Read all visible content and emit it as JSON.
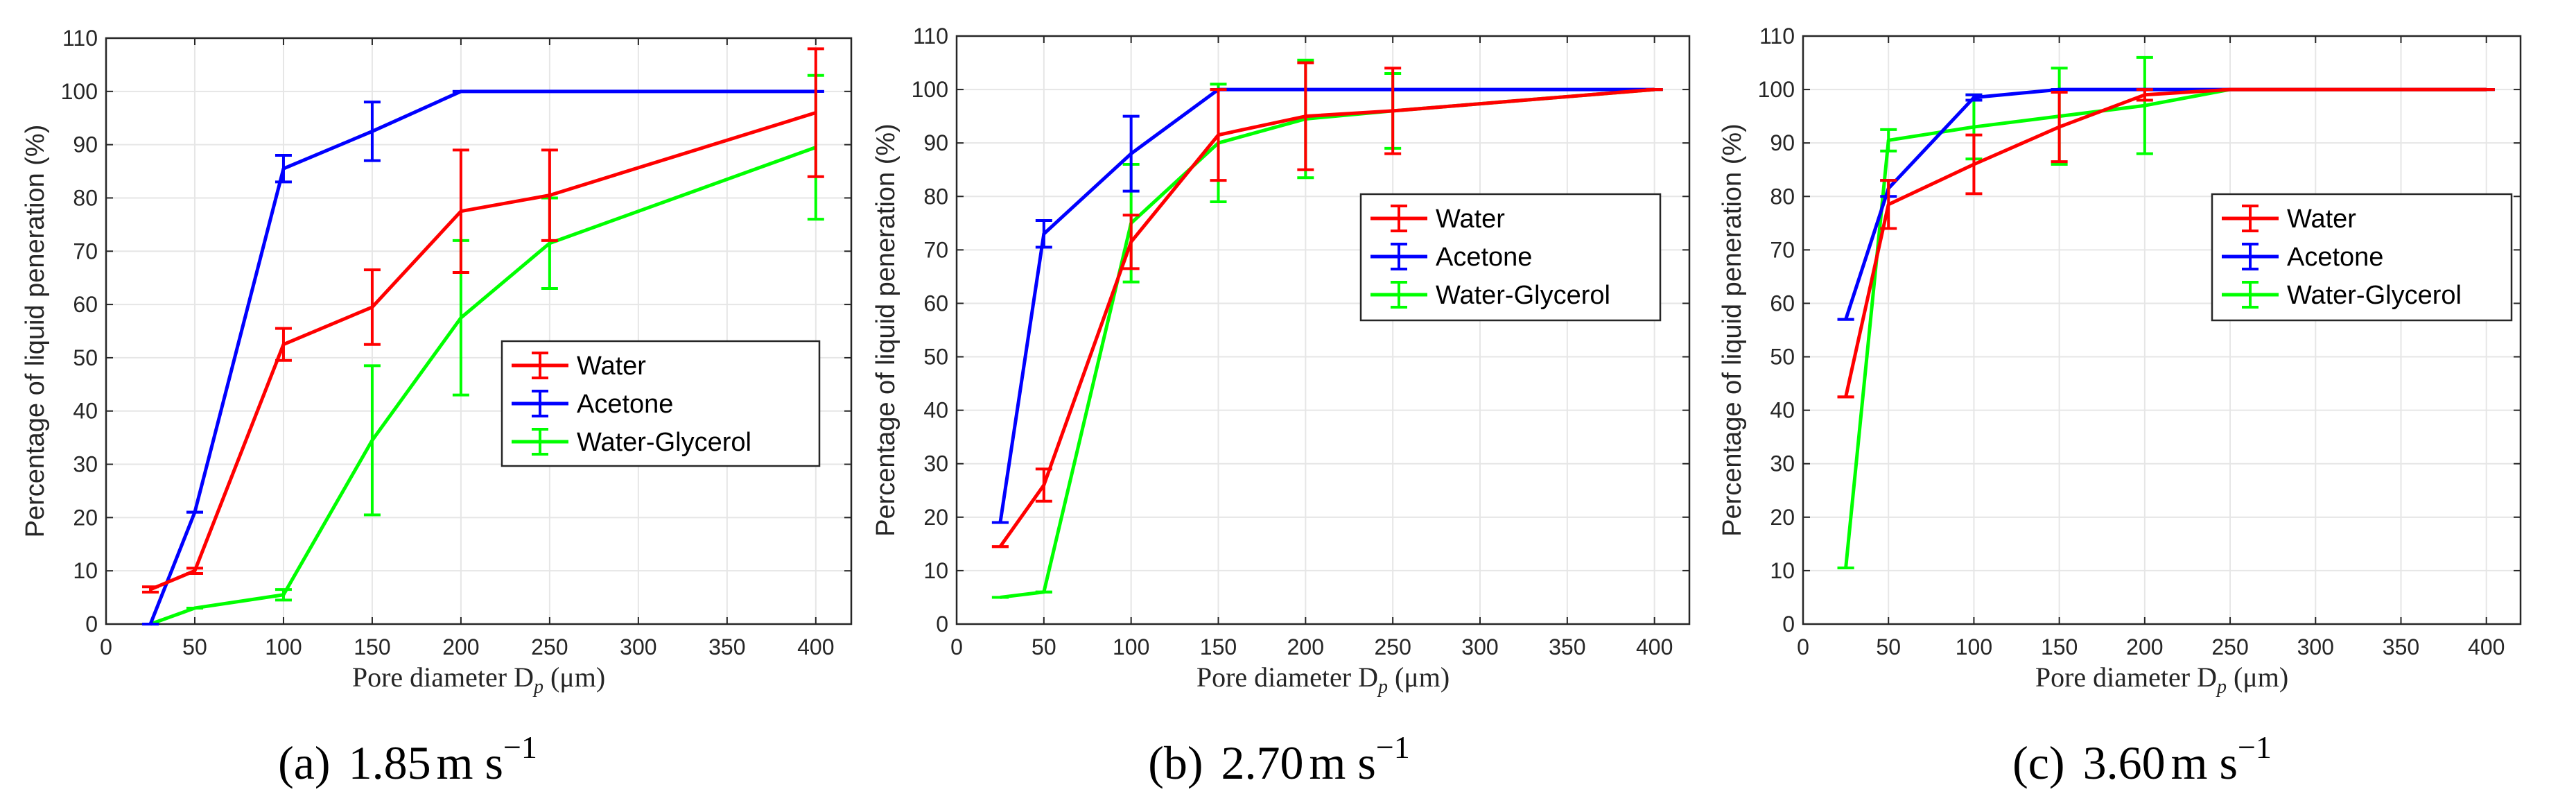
{
  "figure": {
    "colors": {
      "Water": "#ff0000",
      "Acetone": "#0000ff",
      "Water-Glycerol": "#00ff00",
      "grid": "#e6e6e6",
      "axis": "#262626"
    }
  },
  "chart_data": [
    {
      "type": "line",
      "panel_label": "(a)",
      "speed": "1.85",
      "unit": "m s",
      "unit_exponent": "−1",
      "xlabel_main": "Pore diameter D",
      "xlabel_sub": "p",
      "xlabel_unit": "(μm)",
      "ylabel": "Percentage of liquid peneration (%)",
      "xlim": [
        0,
        420
      ],
      "ylim": [
        0,
        110
      ],
      "xticks": [
        0,
        50,
        100,
        150,
        200,
        250,
        300,
        350,
        400
      ],
      "yticks": [
        0,
        10,
        20,
        30,
        40,
        50,
        60,
        70,
        80,
        90,
        100,
        110
      ],
      "legend_position": "center-right",
      "series": [
        {
          "name": "Water",
          "x": [
            25,
            50,
            100,
            150,
            200,
            250,
            400
          ],
          "y": [
            6.5,
            10,
            52.5,
            59.5,
            77.5,
            80.5,
            96
          ],
          "err": [
            0.5,
            0.5,
            3,
            7,
            11.5,
            8.5,
            12
          ]
        },
        {
          "name": "Acetone",
          "x": [
            25,
            50,
            100,
            150,
            200,
            250,
            400
          ],
          "y": [
            0,
            21,
            85.5,
            92.5,
            100,
            100,
            100
          ],
          "err": [
            0,
            0,
            2.5,
            5.5,
            0,
            0,
            0
          ]
        },
        {
          "name": "Water-Glycerol",
          "x": [
            25,
            50,
            100,
            150,
            200,
            250,
            400
          ],
          "y": [
            0,
            3,
            5.5,
            34.5,
            57.5,
            71.5,
            89.5
          ],
          "err": [
            0,
            0,
            1,
            14,
            14.5,
            8.5,
            13.5
          ]
        }
      ]
    },
    {
      "type": "line",
      "panel_label": "(b)",
      "speed": "2.70",
      "unit": "m s",
      "unit_exponent": "−1",
      "xlabel_main": "Pore diameter D",
      "xlabel_sub": "p",
      "xlabel_unit": "(μm)",
      "ylabel": "Percentage of liquid peneration (%)",
      "xlim": [
        0,
        420
      ],
      "ylim": [
        0,
        110
      ],
      "xticks": [
        0,
        50,
        100,
        150,
        200,
        250,
        300,
        350,
        400
      ],
      "yticks": [
        0,
        10,
        20,
        30,
        40,
        50,
        60,
        70,
        80,
        90,
        100,
        110
      ],
      "legend_position": "center-right",
      "series": [
        {
          "name": "Water",
          "x": [
            25,
            50,
            100,
            150,
            200,
            250,
            400
          ],
          "y": [
            14.5,
            26,
            71.5,
            91.5,
            95,
            96,
            100
          ],
          "err": [
            0,
            3,
            5,
            8.5,
            10,
            8,
            0
          ]
        },
        {
          "name": "Acetone",
          "x": [
            25,
            50,
            100,
            150,
            200,
            250,
            400
          ],
          "y": [
            19,
            73,
            88,
            100,
            100,
            100,
            100
          ],
          "err": [
            0,
            2.5,
            7,
            0,
            0,
            0,
            0
          ]
        },
        {
          "name": "Water-Glycerol",
          "x": [
            25,
            50,
            100,
            150,
            200,
            250,
            400
          ],
          "y": [
            5,
            6,
            75,
            90,
            94.5,
            96,
            100
          ],
          "err": [
            0,
            0,
            11,
            11,
            11,
            7,
            0
          ]
        }
      ]
    },
    {
      "type": "line",
      "panel_label": "(c)",
      "speed": "3.60",
      "unit": "m s",
      "unit_exponent": "−1",
      "xlabel_main": "Pore diameter D",
      "xlabel_sub": "p",
      "xlabel_unit": "(μm)",
      "ylabel": "Percentage of liquid peneration (%)",
      "xlim": [
        0,
        420
      ],
      "ylim": [
        0,
        110
      ],
      "xticks": [
        0,
        50,
        100,
        150,
        200,
        250,
        300,
        350,
        400
      ],
      "yticks": [
        0,
        10,
        20,
        30,
        40,
        50,
        60,
        70,
        80,
        90,
        100,
        110
      ],
      "legend_position": "top-right",
      "series": [
        {
          "name": "Water",
          "x": [
            25,
            50,
            100,
            150,
            200,
            250,
            400
          ],
          "y": [
            42.5,
            78.5,
            86,
            93,
            99,
            100,
            100
          ],
          "err": [
            0,
            4.5,
            5.5,
            6.5,
            1,
            0,
            0
          ]
        },
        {
          "name": "Acetone",
          "x": [
            25,
            50,
            100,
            150,
            200,
            250,
            400
          ],
          "y": [
            57,
            81.5,
            98.5,
            100,
            100,
            100,
            100
          ],
          "err": [
            0,
            1.5,
            0.5,
            0,
            0,
            0,
            0
          ]
        },
        {
          "name": "Water-Glycerol",
          "x": [
            25,
            50,
            100,
            150,
            200,
            250,
            400
          ],
          "y": [
            10.5,
            90.5,
            93,
            95,
            97,
            100,
            100
          ],
          "err": [
            0,
            2,
            6,
            9,
            9,
            0,
            0
          ]
        }
      ]
    }
  ]
}
